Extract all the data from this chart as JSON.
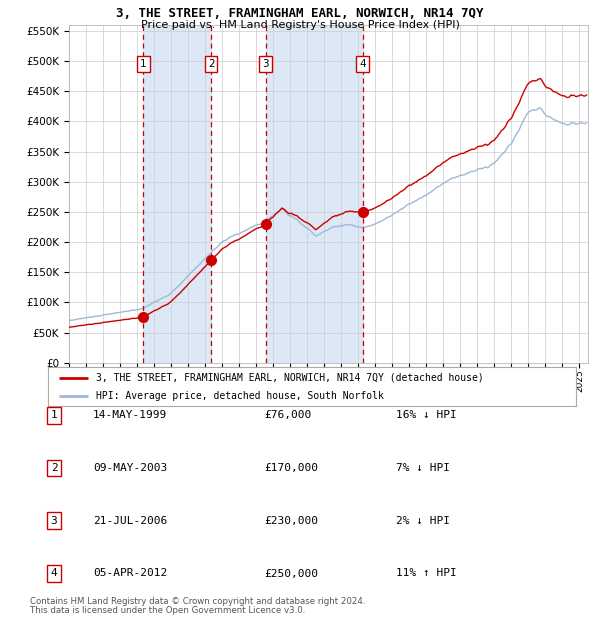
{
  "title": "3, THE STREET, FRAMINGHAM EARL, NORWICH, NR14 7QY",
  "subtitle": "Price paid vs. HM Land Registry's House Price Index (HPI)",
  "legend_line1": "3, THE STREET, FRAMINGHAM EARL, NORWICH, NR14 7QY (detached house)",
  "legend_line2": "HPI: Average price, detached house, South Norfolk",
  "footer1": "Contains HM Land Registry data © Crown copyright and database right 2024.",
  "footer2": "This data is licensed under the Open Government Licence v3.0.",
  "sales": [
    {
      "num": 1,
      "date": "14-MAY-1999",
      "date_x": 1999.37,
      "price": 76000
    },
    {
      "num": 2,
      "date": "09-MAY-2003",
      "date_x": 2003.36,
      "price": 170000
    },
    {
      "num": 3,
      "date": "21-JUL-2006",
      "date_x": 2006.55,
      "price": 230000
    },
    {
      "num": 4,
      "date": "05-APR-2012",
      "date_x": 2012.26,
      "price": 250000
    }
  ],
  "table_rows": [
    {
      "num": 1,
      "date": "14-MAY-1999",
      "price": "£76,000",
      "hpi": "16% ↓ HPI"
    },
    {
      "num": 2,
      "date": "09-MAY-2003",
      "price": "£170,000",
      "hpi": "7% ↓ HPI"
    },
    {
      "num": 3,
      "date": "21-JUL-2006",
      "price": "£230,000",
      "hpi": "2% ↓ HPI"
    },
    {
      "num": 4,
      "date": "05-APR-2012",
      "price": "£250,000",
      "hpi": "11% ↑ HPI"
    }
  ],
  "hpi_color": "#a0b8d8",
  "price_color": "#cc0000",
  "sale_dot_color": "#cc0000",
  "dashed_line_color": "#cc0000",
  "shade_color": "#dce8f5",
  "grid_color": "#cccccc",
  "background_color": "#ffffff",
  "ylim": [
    0,
    560000
  ],
  "yticks": [
    0,
    50000,
    100000,
    150000,
    200000,
    250000,
    300000,
    350000,
    400000,
    450000,
    500000,
    550000
  ],
  "xlim_start": 1995.0,
  "xlim_end": 2025.5
}
